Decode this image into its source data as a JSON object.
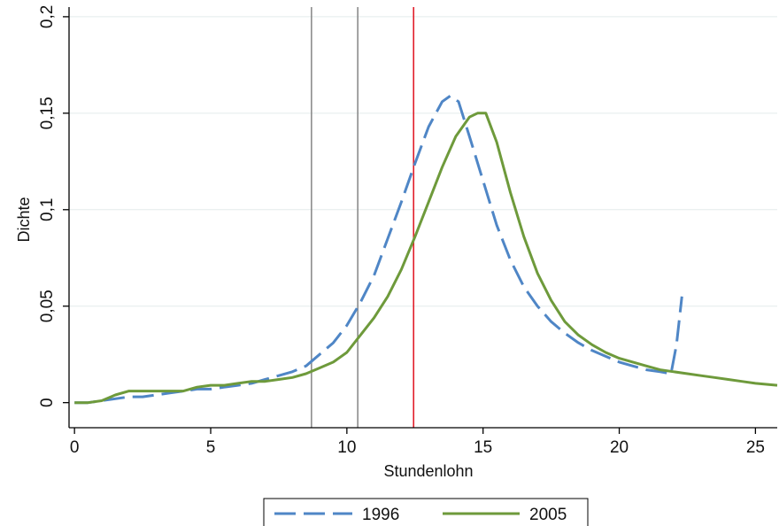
{
  "chart_data": {
    "type": "line",
    "title": "",
    "xlabel": "Stundenlohn",
    "ylabel": "Dichte",
    "xlim": [
      -0.2,
      25.8
    ],
    "ylim": [
      -0.013,
      0.205
    ],
    "x_ticks": [
      0,
      5,
      10,
      15,
      20,
      25
    ],
    "x_tick_labels": [
      "0",
      "5",
      "10",
      "15",
      "20",
      "25"
    ],
    "y_ticks": [
      0,
      0.05,
      0.1,
      0.15,
      0.2
    ],
    "y_tick_labels": [
      "0",
      "0,05",
      "0,1",
      "0,15",
      "0,2"
    ],
    "grid": true,
    "legend_position": "bottom",
    "vertical_lines": [
      {
        "x": 8.7,
        "color": "#8c8c8c"
      },
      {
        "x": 10.4,
        "color": "#8c8c8c"
      },
      {
        "x": 12.45,
        "color": "#e01e2a"
      }
    ],
    "series": [
      {
        "name": "1996",
        "color": "#4f86c6",
        "dash": "long-dash",
        "points": [
          [
            0,
            0
          ],
          [
            0.5,
            0
          ],
          [
            1,
            0.001
          ],
          [
            1.5,
            0.002
          ],
          [
            2,
            0.003
          ],
          [
            2.5,
            0.003
          ],
          [
            3,
            0.004
          ],
          [
            3.5,
            0.005
          ],
          [
            4,
            0.006
          ],
          [
            4.5,
            0.007
          ],
          [
            5,
            0.007
          ],
          [
            5.5,
            0.008
          ],
          [
            6,
            0.009
          ],
          [
            6.5,
            0.01
          ],
          [
            7,
            0.012
          ],
          [
            7.5,
            0.014
          ],
          [
            8,
            0.016
          ],
          [
            8.5,
            0.019
          ],
          [
            9,
            0.025
          ],
          [
            9.5,
            0.031
          ],
          [
            10,
            0.04
          ],
          [
            10.5,
            0.052
          ],
          [
            11,
            0.066
          ],
          [
            11.5,
            0.085
          ],
          [
            12,
            0.104
          ],
          [
            12.5,
            0.124
          ],
          [
            13,
            0.143
          ],
          [
            13.5,
            0.156
          ],
          [
            13.8,
            0.159
          ],
          [
            14.1,
            0.156
          ],
          [
            14.5,
            0.138
          ],
          [
            15,
            0.115
          ],
          [
            15.5,
            0.092
          ],
          [
            16,
            0.074
          ],
          [
            16.5,
            0.06
          ],
          [
            17,
            0.05
          ],
          [
            17.5,
            0.042
          ],
          [
            18,
            0.036
          ],
          [
            18.5,
            0.031
          ],
          [
            19,
            0.027
          ],
          [
            19.5,
            0.024
          ],
          [
            20,
            0.021
          ],
          [
            20.5,
            0.019
          ],
          [
            21,
            0.017
          ],
          [
            21.5,
            0.016
          ],
          [
            21.9,
            0.015
          ],
          [
            22.1,
            0.03
          ],
          [
            22.3,
            0.055
          ]
        ]
      },
      {
        "name": "2005",
        "color": "#6e9a3b",
        "dash": "solid",
        "points": [
          [
            0,
            0
          ],
          [
            0.5,
            0
          ],
          [
            1,
            0.001
          ],
          [
            1.5,
            0.004
          ],
          [
            2,
            0.006
          ],
          [
            2.5,
            0.006
          ],
          [
            3,
            0.006
          ],
          [
            3.5,
            0.006
          ],
          [
            4,
            0.006
          ],
          [
            4.5,
            0.008
          ],
          [
            5,
            0.009
          ],
          [
            5.5,
            0.009
          ],
          [
            6,
            0.01
          ],
          [
            6.5,
            0.011
          ],
          [
            7,
            0.011
          ],
          [
            7.5,
            0.012
          ],
          [
            8,
            0.013
          ],
          [
            8.5,
            0.015
          ],
          [
            9,
            0.018
          ],
          [
            9.5,
            0.021
          ],
          [
            10,
            0.026
          ],
          [
            10.5,
            0.035
          ],
          [
            11,
            0.044
          ],
          [
            11.5,
            0.055
          ],
          [
            12,
            0.069
          ],
          [
            12.5,
            0.086
          ],
          [
            13,
            0.104
          ],
          [
            13.5,
            0.122
          ],
          [
            14,
            0.138
          ],
          [
            14.5,
            0.148
          ],
          [
            14.8,
            0.15
          ],
          [
            15.1,
            0.15
          ],
          [
            15.5,
            0.135
          ],
          [
            16,
            0.109
          ],
          [
            16.5,
            0.086
          ],
          [
            17,
            0.067
          ],
          [
            17.5,
            0.053
          ],
          [
            18,
            0.042
          ],
          [
            18.5,
            0.035
          ],
          [
            19,
            0.03
          ],
          [
            19.5,
            0.026
          ],
          [
            20,
            0.023
          ],
          [
            20.5,
            0.021
          ],
          [
            21,
            0.019
          ],
          [
            21.5,
            0.017
          ],
          [
            22,
            0.016
          ],
          [
            22.5,
            0.015
          ],
          [
            23,
            0.014
          ],
          [
            23.5,
            0.013
          ],
          [
            24,
            0.012
          ],
          [
            24.5,
            0.011
          ],
          [
            25,
            0.01
          ],
          [
            25.8,
            0.009
          ]
        ]
      }
    ]
  }
}
